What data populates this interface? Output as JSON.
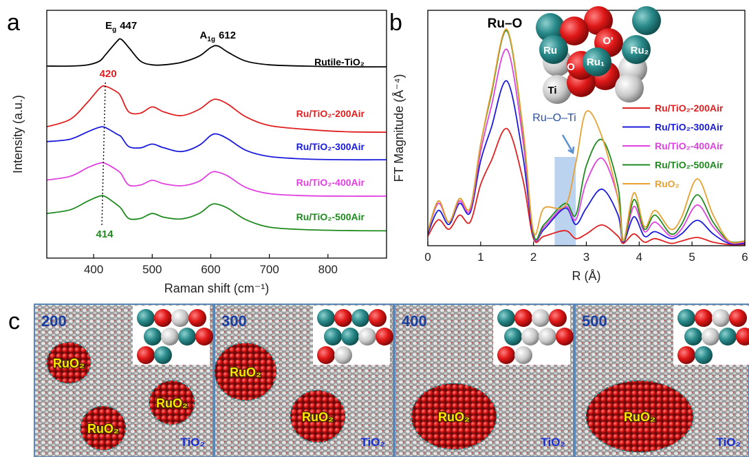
{
  "panel_labels": [
    "a",
    "b",
    "c"
  ],
  "chart_data": [
    {
      "type": "line",
      "xlabel": "Raman shift (cm⁻¹)",
      "ylabel": "Intensity (a.u.)",
      "x": [
        320,
        360,
        390,
        410,
        420,
        440,
        447,
        460,
        480,
        500,
        520,
        550,
        580,
        600,
        612,
        630,
        660,
        700,
        760,
        830,
        900
      ],
      "series": [
        {
          "name": "Rutile-TiO₂",
          "color": "#000000",
          "values": [
            7.75,
            7.75,
            7.8,
            7.95,
            8.2,
            8.75,
            8.83,
            8.5,
            7.95,
            7.8,
            7.8,
            7.9,
            8.15,
            8.5,
            8.56,
            8.3,
            7.95,
            7.8,
            7.75,
            7.72,
            7.72
          ]
        },
        {
          "name": "Ru/TiO₂-200Air",
          "color": "#e02020",
          "values": [
            5.3,
            5.6,
            6.3,
            6.85,
            6.94,
            6.7,
            6.5,
            5.9,
            5.85,
            6.1,
            5.9,
            5.75,
            6.0,
            6.35,
            6.4,
            6.2,
            5.7,
            5.35,
            5.2,
            5.1,
            5.08
          ]
        },
        {
          "name": "Ru/TiO₂-300Air",
          "color": "#1a1adb",
          "values": [
            4.7,
            4.8,
            5.1,
            5.28,
            5.27,
            5.0,
            4.9,
            4.5,
            4.45,
            4.6,
            4.45,
            4.3,
            4.55,
            4.95,
            5.0,
            4.8,
            4.35,
            4.1,
            4.0,
            3.97,
            3.97
          ]
        },
        {
          "name": "Ru/TiO₂-400Air",
          "color": "#e040e0",
          "values": [
            3.15,
            3.3,
            3.65,
            3.83,
            3.82,
            3.55,
            3.4,
            2.95,
            2.95,
            3.14,
            3.0,
            2.92,
            3.1,
            3.45,
            3.47,
            3.3,
            2.85,
            2.6,
            2.52,
            2.5,
            2.5
          ]
        },
        {
          "name": "Ru/TiO₂-500Air",
          "color": "#1e8a1e",
          "values": [
            1.8,
            1.95,
            2.3,
            2.5,
            2.48,
            2.15,
            2.0,
            1.6,
            1.6,
            1.8,
            1.65,
            1.58,
            1.8,
            2.15,
            2.17,
            2.0,
            1.55,
            1.25,
            1.15,
            1.11,
            1.1
          ]
        }
      ],
      "xlim": [
        320,
        900
      ],
      "ylim": [
        0,
        10
      ],
      "xticks": [
        400,
        500,
        600,
        700,
        800
      ],
      "annotations": [
        {
          "text": "E",
          "sub": "g",
          "x": 447
        },
        {
          "text": "A",
          "sub": "1g",
          "x": 612
        },
        {
          "x": 420
        },
        {
          "x": 414
        }
      ]
    },
    {
      "type": "line",
      "xlabel": "R (Å)",
      "ylabel": "FT Magnitude (Å⁻⁴)",
      "x": [
        0,
        0.2,
        0.4,
        0.6,
        0.8,
        1.0,
        1.2,
        1.5,
        1.8,
        2.0,
        2.2,
        2.6,
        2.8,
        3.0,
        3.3,
        3.6,
        3.7,
        3.9,
        4.1,
        4.3,
        4.6,
        4.8,
        5.1,
        5.4,
        5.7,
        6.0
      ],
      "series": [
        {
          "name": "Ru/TiO₂-200Air",
          "color": "#e02020",
          "values": [
            0.4,
            1.1,
            0.7,
            1.3,
            1.0,
            2.6,
            3.6,
            4.97,
            2.8,
            0.3,
            0.4,
            0.64,
            0.3,
            0.5,
            0.88,
            0.4,
            0.1,
            0.5,
            0.15,
            0.3,
            0.1,
            0.2,
            0.35,
            0.15,
            0.05,
            0.05
          ]
        },
        {
          "name": "Ru/TiO₂-300Air",
          "color": "#1a1adb",
          "values": [
            0.5,
            1.5,
            0.9,
            1.8,
            1.4,
            3.6,
            5.0,
            6.99,
            3.8,
            0.4,
            0.7,
            1.6,
            0.9,
            1.6,
            2.4,
            1.3,
            0.15,
            1.23,
            0.4,
            0.6,
            0.3,
            0.5,
            1.08,
            0.5,
            0.1,
            0.1
          ]
        },
        {
          "name": "Ru/TiO₂-400Air",
          "color": "#e040e0",
          "values": [
            0.6,
            1.8,
            1.0,
            1.9,
            1.5,
            4.0,
            5.9,
            8.33,
            4.5,
            0.45,
            0.8,
            1.67,
            1.1,
            2.7,
            3.71,
            2.0,
            0.2,
            1.67,
            0.6,
            1.0,
            0.4,
            0.7,
            1.73,
            0.8,
            0.15,
            0.15
          ]
        },
        {
          "name": "Ru/TiO₂-500Air",
          "color": "#1e8a1e",
          "values": [
            0.6,
            1.9,
            1.0,
            2.0,
            1.6,
            4.3,
            6.4,
            9.12,
            4.9,
            0.5,
            0.9,
            1.8,
            1.3,
            3.4,
            4.5,
            2.5,
            0.2,
            1.96,
            0.7,
            1.3,
            0.5,
            0.9,
            2.16,
            1.0,
            0.2,
            0.2
          ]
        },
        {
          "name": "RuO₂",
          "color": "#e8a030",
          "values": [
            0.6,
            1.9,
            1.0,
            2.0,
            1.6,
            4.3,
            6.5,
            9.18,
            5.0,
            0.6,
            1.6,
            1.7,
            3.5,
            5.7,
            4.6,
            2.0,
            0.2,
            2.25,
            0.8,
            1.5,
            0.7,
            1.2,
            2.84,
            1.3,
            0.2,
            0.2
          ]
        }
      ],
      "xlim": [
        0,
        6
      ],
      "ylim": [
        0,
        10
      ],
      "xticks": [
        0,
        1,
        2,
        3,
        4,
        5,
        6
      ],
      "legend": "right",
      "peak_label": "Ru–O",
      "highlight": {
        "label": "Ru–O–Ti",
        "range": [
          2.4,
          2.8
        ]
      },
      "inset_labels": [
        "Ru",
        "O'",
        "Ru₂",
        "O",
        "Ru₁",
        "Ti"
      ]
    }
  ],
  "panel_c": {
    "panels": [
      {
        "label": "200",
        "particles": [
          "RuO₂",
          "RuO₂",
          "RuO₂"
        ],
        "support": "TiO₂"
      },
      {
        "label": "300",
        "particles": [
          "RuO₂",
          "RuO₂"
        ],
        "support": "TiO₂"
      },
      {
        "label": "400",
        "particles": [
          "RuO₂"
        ],
        "support": "TiO₂"
      },
      {
        "label": "500",
        "particles": [
          "RuO₂"
        ],
        "support": "TiO₂"
      }
    ]
  }
}
